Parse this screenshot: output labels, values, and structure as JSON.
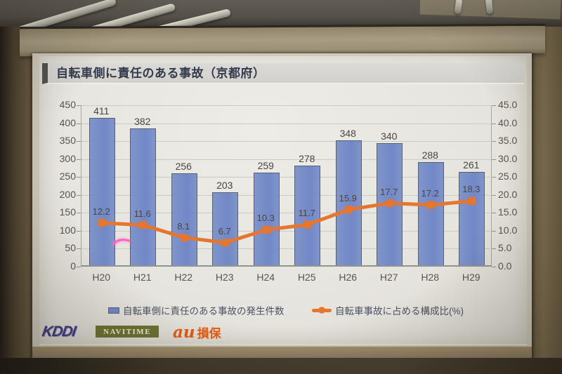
{
  "slide": {
    "title": "自転車側に責任のある事故（京都府）",
    "logos": {
      "kddi": "KDDI",
      "navitime": "NAVITIME",
      "au_prefix": "au",
      "au_suffix": "損保"
    }
  },
  "chart_data": {
    "type": "bar",
    "title": "自転車側に責任のある事故（京都府）",
    "categories": [
      "H20",
      "H21",
      "H22",
      "H23",
      "H24",
      "H25",
      "H26",
      "H27",
      "H28",
      "H29"
    ],
    "series": [
      {
        "name": "自転車側に責任のある事故の発生件数",
        "type": "bar",
        "axis": "left",
        "color": "#7188c7",
        "values": [
          411,
          382,
          256,
          203,
          259,
          278,
          348,
          340,
          288,
          261
        ]
      },
      {
        "name": "自転車事故に占める構成比(%)",
        "type": "line",
        "axis": "right",
        "color": "#e4762f",
        "values": [
          12.2,
          11.6,
          8.1,
          6.7,
          10.3,
          11.7,
          15.9,
          17.7,
          17.2,
          18.3
        ]
      }
    ],
    "left_axis": {
      "min": 0,
      "max": 450,
      "step": 50,
      "tick_labels": [
        "450",
        "400",
        "350",
        "300",
        "250",
        "200",
        "150",
        "100",
        "50",
        "0"
      ]
    },
    "right_axis": {
      "min": 0,
      "max": 45,
      "step": 5,
      "tick_labels": [
        "45.0",
        "40.0",
        "35.0",
        "30.0",
        "25.0",
        "20.0",
        "15.0",
        "10.0",
        "5.0",
        "0.0"
      ]
    },
    "grid": true,
    "legend_position": "bottom"
  }
}
